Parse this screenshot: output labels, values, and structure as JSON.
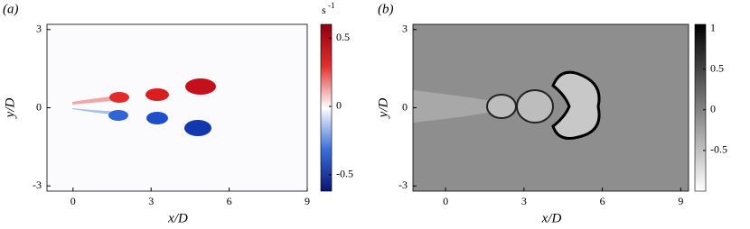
{
  "chart_data": [
    {
      "type": "heatmap",
      "panel_label": "(a)",
      "x_label": "x/D",
      "y_label": "y/D",
      "xlim": [
        -1,
        9
      ],
      "ylim": [
        -3.2,
        3.2
      ],
      "xticks": [
        0,
        3,
        6,
        9
      ],
      "yticks": [
        -3,
        0,
        3
      ],
      "colorbar": {
        "clim": [
          -0.62,
          0.6
        ],
        "ticks": [
          -0.5,
          0,
          0.5
        ],
        "colors": [
          "#0a1670",
          "#3a6fd8",
          "#ffffff",
          "#e03030",
          "#8c0010"
        ],
        "unit": {
          "base": "s",
          "exponent": "-1"
        }
      }
    },
    {
      "type": "heatmap",
      "panel_label": "(b)",
      "x_label": "x/D",
      "y_label": "y/D",
      "xlim": [
        -1.25,
        9.3
      ],
      "ylim": [
        -3.2,
        3.2
      ],
      "xticks": [
        0,
        3,
        6,
        9
      ],
      "yticks": [
        -3,
        0,
        3
      ],
      "colorbar": {
        "clim": [
          -1,
          1.05
        ],
        "ticks": [
          -0.5,
          0,
          0.5,
          1
        ],
        "colors": [
          "#ffffff",
          "#000000"
        ]
      }
    }
  ]
}
